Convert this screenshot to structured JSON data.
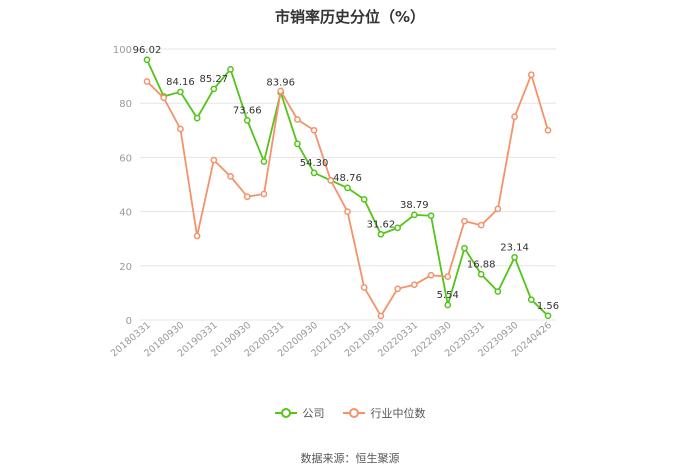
{
  "title": "市销率历史分位（%）",
  "source": "数据来源：恒生聚源",
  "colors": {
    "company": "#52c41a",
    "industry": "#f5926b",
    "grid": "#e6e6e6",
    "axis_text": "#999999",
    "label_text": "#333333"
  },
  "chart_data": {
    "type": "line",
    "title": "市销率历史分位（%）",
    "ylim": [
      0,
      100
    ],
    "y_ticks": [
      0,
      20,
      40,
      60,
      80,
      100
    ],
    "grid": true,
    "legend_position": "bottom-center",
    "x_tick_labels": [
      "20180331",
      "20180930",
      "20190331",
      "20190930",
      "20200331",
      "20200930",
      "20210331",
      "20210930",
      "20220331",
      "20220930",
      "20230331",
      "20230930",
      "20240426"
    ],
    "series": [
      {
        "name": "公司",
        "color": "#52c41a",
        "values": [
          96.02,
          82.5,
          84.16,
          74.5,
          85.27,
          92.5,
          73.66,
          58.5,
          83.96,
          65.0,
          54.3,
          51.5,
          48.76,
          44.5,
          31.62,
          34.0,
          38.79,
          38.5,
          5.54,
          26.5,
          16.88,
          10.5,
          23.14,
          7.5,
          1.56
        ],
        "labels": [
          "96.02",
          "",
          "84.16",
          "",
          "85.27",
          "",
          "73.66",
          "",
          "83.96",
          "",
          "54.30",
          "",
          "48.76",
          "",
          "31.62",
          "",
          "38.79",
          "",
          "5.54",
          "",
          "16.88",
          "",
          "23.14",
          "",
          "1.56"
        ]
      },
      {
        "name": "行业中位数",
        "color": "#f5926b",
        "values": [
          88.0,
          82.0,
          70.5,
          31.0,
          59.0,
          53.0,
          45.5,
          46.5,
          84.5,
          74.0,
          70.0,
          51.5,
          40.0,
          12.0,
          1.5,
          11.5,
          13.0,
          16.5,
          16.0,
          36.5,
          35.0,
          41.0,
          75.0,
          90.5,
          70.0
        ]
      }
    ]
  }
}
